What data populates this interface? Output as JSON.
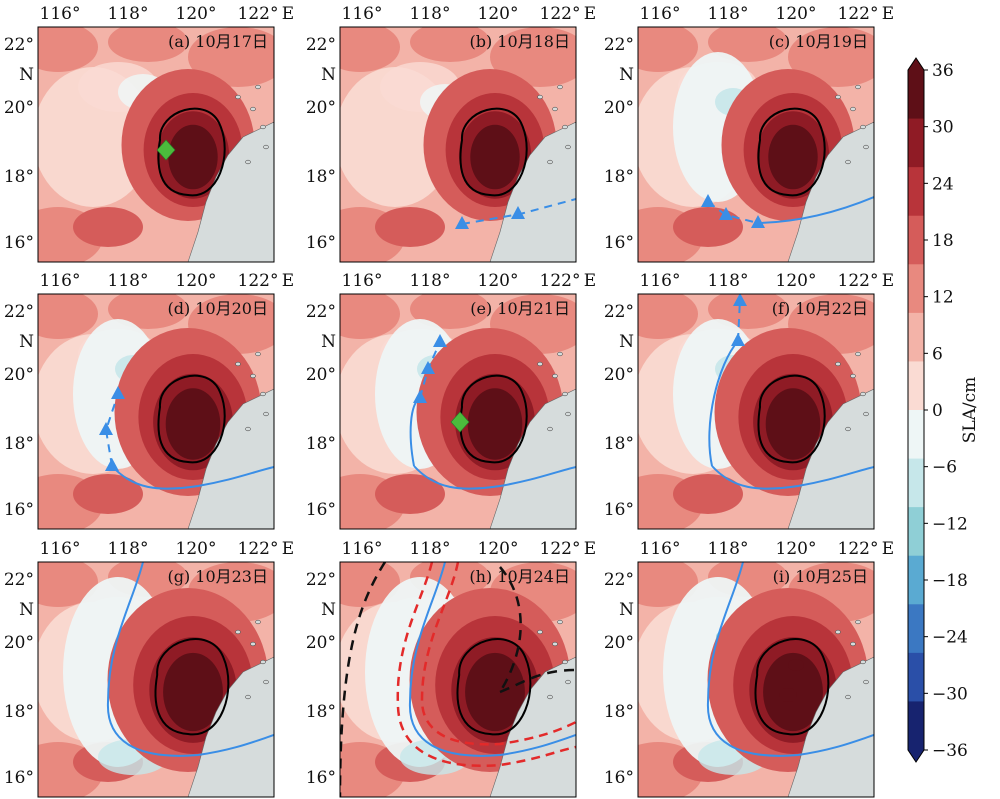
{
  "chart_data": {
    "type": "heatmap",
    "title": "",
    "colorbar": {
      "label": "SLA/cm",
      "ticks": [
        36,
        30,
        24,
        18,
        12,
        6,
        0,
        -6,
        -12,
        -18,
        -24,
        -30,
        -36
      ],
      "tick_labels": [
        "36",
        "30",
        "24",
        "18",
        "12",
        "6",
        "0",
        "−6",
        "−12",
        "−18",
        "−24",
        "−30",
        "−36"
      ],
      "range": [
        -36,
        36
      ],
      "colors_high_to_low": [
        "#5e0f17",
        "#8f1b25",
        "#b8343a",
        "#d55c5a",
        "#e8897f",
        "#f3b3a8",
        "#fadbd3",
        "#eef6f6",
        "#c6e7ea",
        "#8fcfd6",
        "#5aaad2",
        "#3b78c2",
        "#2a4fa8",
        "#17236f"
      ]
    },
    "x_ticks": [
      "116°",
      "118°",
      "120°",
      "122°",
      "E"
    ],
    "y_ticks": [
      "22°",
      "N",
      "20°",
      "18°",
      "16°"
    ],
    "lon_range": [
      115,
      123
    ],
    "lat_range": [
      15.5,
      23
    ],
    "panels": [
      {
        "label": "(a) 10月17日",
        "row": 0,
        "col": 0
      },
      {
        "label": "(b) 10月18日",
        "row": 0,
        "col": 1
      },
      {
        "label": "(c) 10月19日",
        "row": 0,
        "col": 2
      },
      {
        "label": "(d) 10月20日",
        "row": 1,
        "col": 0
      },
      {
        "label": "(e) 10月21日",
        "row": 1,
        "col": 1
      },
      {
        "label": "(f) 10月22日",
        "row": 1,
        "col": 2
      },
      {
        "label": "(g) 10月23日",
        "row": 2,
        "col": 0
      },
      {
        "label": "(h) 10月24日",
        "row": 2,
        "col": 1
      },
      {
        "label": "(i) 10月25日",
        "row": 2,
        "col": 2
      }
    ],
    "colors": {
      "track": "#3a8ee6",
      "marker_green": "#4cbb3c",
      "land": "#d6dcdc",
      "dash_red": "#e32a2a",
      "dash_black": "#111111"
    }
  }
}
